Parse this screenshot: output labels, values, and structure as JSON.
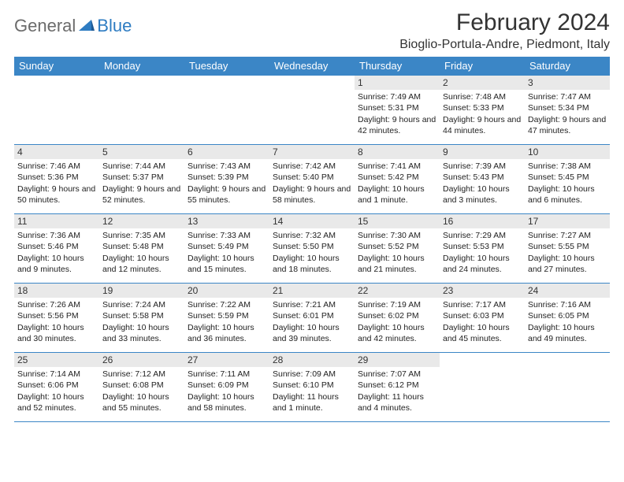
{
  "logo": {
    "general": "General",
    "blue": "Blue"
  },
  "title": "February 2024",
  "location": "Bioglio-Portula-Andre, Piedmont, Italy",
  "colors": {
    "header_bg": "#3b86c6",
    "header_fg": "#ffffff",
    "daynum_bg": "#e9e9e9",
    "border": "#3b86c6",
    "logo_gray": "#6b6b6b",
    "logo_blue": "#2e7cc2"
  },
  "weekdays": [
    "Sunday",
    "Monday",
    "Tuesday",
    "Wednesday",
    "Thursday",
    "Friday",
    "Saturday"
  ],
  "weeks": [
    [
      {
        "day": "",
        "lines": []
      },
      {
        "day": "",
        "lines": []
      },
      {
        "day": "",
        "lines": []
      },
      {
        "day": "",
        "lines": []
      },
      {
        "day": "1",
        "lines": [
          "Sunrise: 7:49 AM",
          "Sunset: 5:31 PM",
          "Daylight: 9 hours and 42 minutes."
        ]
      },
      {
        "day": "2",
        "lines": [
          "Sunrise: 7:48 AM",
          "Sunset: 5:33 PM",
          "Daylight: 9 hours and 44 minutes."
        ]
      },
      {
        "day": "3",
        "lines": [
          "Sunrise: 7:47 AM",
          "Sunset: 5:34 PM",
          "Daylight: 9 hours and 47 minutes."
        ]
      }
    ],
    [
      {
        "day": "4",
        "lines": [
          "Sunrise: 7:46 AM",
          "Sunset: 5:36 PM",
          "Daylight: 9 hours and 50 minutes."
        ]
      },
      {
        "day": "5",
        "lines": [
          "Sunrise: 7:44 AM",
          "Sunset: 5:37 PM",
          "Daylight: 9 hours and 52 minutes."
        ]
      },
      {
        "day": "6",
        "lines": [
          "Sunrise: 7:43 AM",
          "Sunset: 5:39 PM",
          "Daylight: 9 hours and 55 minutes."
        ]
      },
      {
        "day": "7",
        "lines": [
          "Sunrise: 7:42 AM",
          "Sunset: 5:40 PM",
          "Daylight: 9 hours and 58 minutes."
        ]
      },
      {
        "day": "8",
        "lines": [
          "Sunrise: 7:41 AM",
          "Sunset: 5:42 PM",
          "Daylight: 10 hours and 1 minute."
        ]
      },
      {
        "day": "9",
        "lines": [
          "Sunrise: 7:39 AM",
          "Sunset: 5:43 PM",
          "Daylight: 10 hours and 3 minutes."
        ]
      },
      {
        "day": "10",
        "lines": [
          "Sunrise: 7:38 AM",
          "Sunset: 5:45 PM",
          "Daylight: 10 hours and 6 minutes."
        ]
      }
    ],
    [
      {
        "day": "11",
        "lines": [
          "Sunrise: 7:36 AM",
          "Sunset: 5:46 PM",
          "Daylight: 10 hours and 9 minutes."
        ]
      },
      {
        "day": "12",
        "lines": [
          "Sunrise: 7:35 AM",
          "Sunset: 5:48 PM",
          "Daylight: 10 hours and 12 minutes."
        ]
      },
      {
        "day": "13",
        "lines": [
          "Sunrise: 7:33 AM",
          "Sunset: 5:49 PM",
          "Daylight: 10 hours and 15 minutes."
        ]
      },
      {
        "day": "14",
        "lines": [
          "Sunrise: 7:32 AM",
          "Sunset: 5:50 PM",
          "Daylight: 10 hours and 18 minutes."
        ]
      },
      {
        "day": "15",
        "lines": [
          "Sunrise: 7:30 AM",
          "Sunset: 5:52 PM",
          "Daylight: 10 hours and 21 minutes."
        ]
      },
      {
        "day": "16",
        "lines": [
          "Sunrise: 7:29 AM",
          "Sunset: 5:53 PM",
          "Daylight: 10 hours and 24 minutes."
        ]
      },
      {
        "day": "17",
        "lines": [
          "Sunrise: 7:27 AM",
          "Sunset: 5:55 PM",
          "Daylight: 10 hours and 27 minutes."
        ]
      }
    ],
    [
      {
        "day": "18",
        "lines": [
          "Sunrise: 7:26 AM",
          "Sunset: 5:56 PM",
          "Daylight: 10 hours and 30 minutes."
        ]
      },
      {
        "day": "19",
        "lines": [
          "Sunrise: 7:24 AM",
          "Sunset: 5:58 PM",
          "Daylight: 10 hours and 33 minutes."
        ]
      },
      {
        "day": "20",
        "lines": [
          "Sunrise: 7:22 AM",
          "Sunset: 5:59 PM",
          "Daylight: 10 hours and 36 minutes."
        ]
      },
      {
        "day": "21",
        "lines": [
          "Sunrise: 7:21 AM",
          "Sunset: 6:01 PM",
          "Daylight: 10 hours and 39 minutes."
        ]
      },
      {
        "day": "22",
        "lines": [
          "Sunrise: 7:19 AM",
          "Sunset: 6:02 PM",
          "Daylight: 10 hours and 42 minutes."
        ]
      },
      {
        "day": "23",
        "lines": [
          "Sunrise: 7:17 AM",
          "Sunset: 6:03 PM",
          "Daylight: 10 hours and 45 minutes."
        ]
      },
      {
        "day": "24",
        "lines": [
          "Sunrise: 7:16 AM",
          "Sunset: 6:05 PM",
          "Daylight: 10 hours and 49 minutes."
        ]
      }
    ],
    [
      {
        "day": "25",
        "lines": [
          "Sunrise: 7:14 AM",
          "Sunset: 6:06 PM",
          "Daylight: 10 hours and 52 minutes."
        ]
      },
      {
        "day": "26",
        "lines": [
          "Sunrise: 7:12 AM",
          "Sunset: 6:08 PM",
          "Daylight: 10 hours and 55 minutes."
        ]
      },
      {
        "day": "27",
        "lines": [
          "Sunrise: 7:11 AM",
          "Sunset: 6:09 PM",
          "Daylight: 10 hours and 58 minutes."
        ]
      },
      {
        "day": "28",
        "lines": [
          "Sunrise: 7:09 AM",
          "Sunset: 6:10 PM",
          "Daylight: 11 hours and 1 minute."
        ]
      },
      {
        "day": "29",
        "lines": [
          "Sunrise: 7:07 AM",
          "Sunset: 6:12 PM",
          "Daylight: 11 hours and 4 minutes."
        ]
      },
      {
        "day": "",
        "lines": []
      },
      {
        "day": "",
        "lines": []
      }
    ]
  ]
}
